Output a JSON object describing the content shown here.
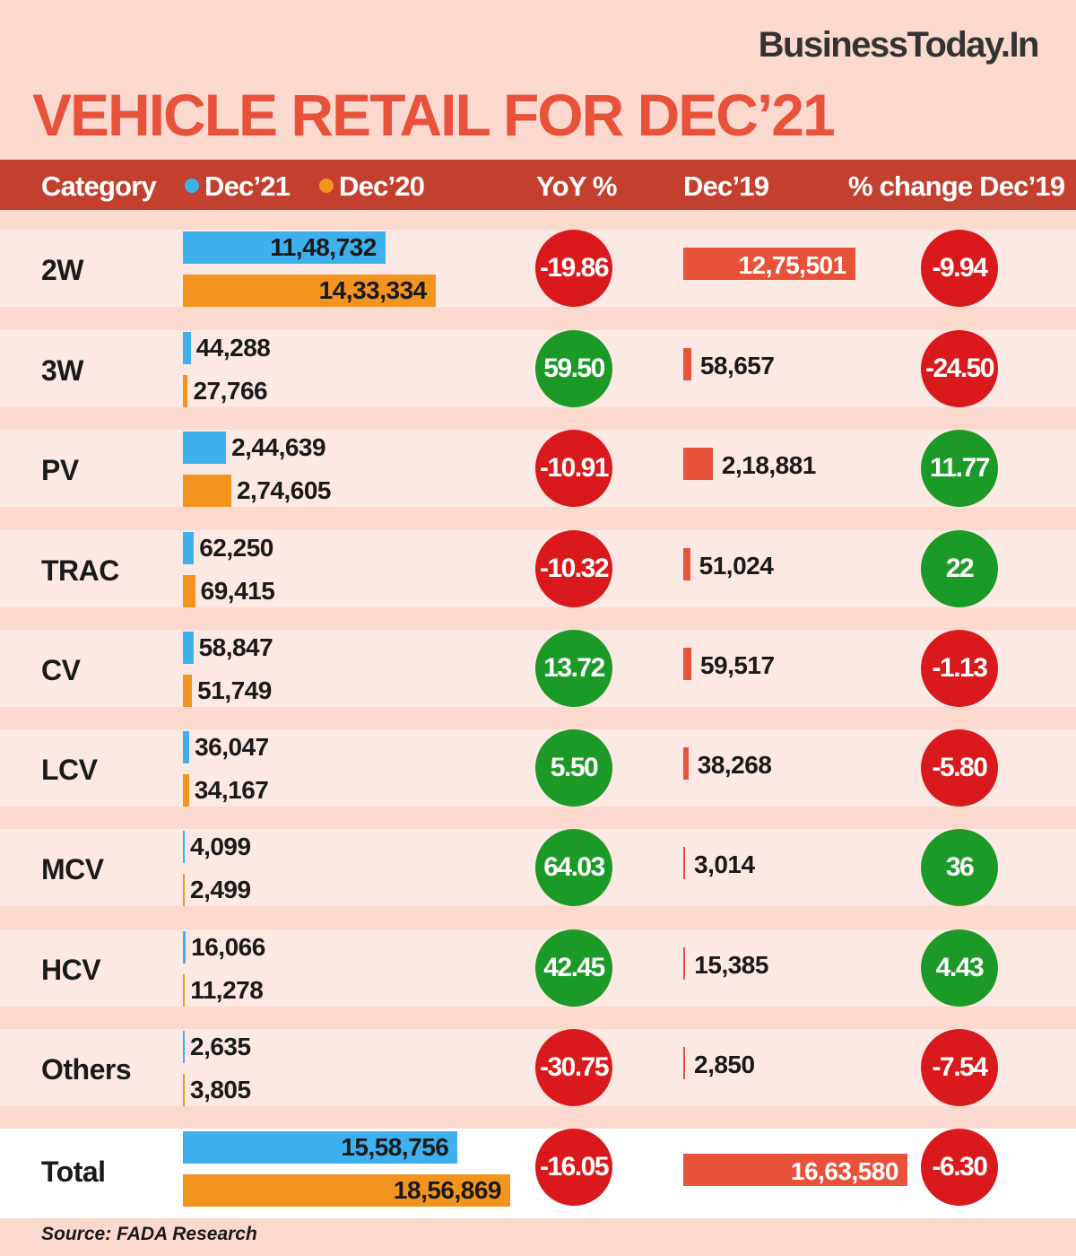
{
  "brand": "BusinessToday.In",
  "title": "VEHICLE RETAIL FOR DEC’21",
  "colors": {
    "dec21": "#3fb0ee",
    "dec20": "#f3941f",
    "dec19": "#e8523a",
    "positive": "#1b9a27",
    "negative": "#d9191c"
  },
  "header": {
    "category": "Category",
    "dec21": "Dec’21",
    "dec20": "Dec’20",
    "yoy": "YoY %",
    "dec19": "Dec’19",
    "change19": "% change Dec’19"
  },
  "source": "Source: FADA Research",
  "chart_data": {
    "type": "bar",
    "categories": [
      "2W",
      "3W",
      "PV",
      "TRAC",
      "CV",
      "LCV",
      "MCV",
      "HCV",
      "Others",
      "Total"
    ],
    "series": [
      {
        "name": "Dec’21",
        "values": [
          1148732,
          44288,
          244639,
          62250,
          58847,
          36047,
          4099,
          16066,
          2635,
          1558756
        ],
        "labels": [
          "11,48,732",
          "44,288",
          "2,44,639",
          "62,250",
          "58,847",
          "36,047",
          "4,099",
          "16,066",
          "2,635",
          "15,58,756"
        ]
      },
      {
        "name": "Dec’20",
        "values": [
          1433334,
          27766,
          274605,
          69415,
          51749,
          34167,
          2499,
          11278,
          3805,
          1856869
        ],
        "labels": [
          "14,33,334",
          "27,766",
          "2,74,605",
          "69,415",
          "51,749",
          "34,167",
          "2,499",
          "11,278",
          "3,805",
          "18,56,869"
        ]
      },
      {
        "name": "Dec’19",
        "values": [
          1275501,
          58657,
          218881,
          51024,
          59517,
          38268,
          3014,
          15385,
          2850,
          1663580
        ],
        "labels": [
          "12,75,501",
          "58,657",
          "2,18,881",
          "51,024",
          "59,517",
          "38,268",
          "3,014",
          "15,385",
          "2,850",
          "16,63,580"
        ]
      }
    ],
    "yoy": [
      "-19.86",
      "59.50",
      "-10.91",
      "-10.32",
      "13.72",
      "5.50",
      "64.03",
      "42.45",
      "-30.75",
      "-16.05"
    ],
    "change_dec19": [
      "-9.94",
      "-24.50",
      "11.77",
      "22",
      "-1.13",
      "-5.80",
      "36",
      "4.43",
      "-7.54",
      "-6.30"
    ]
  }
}
